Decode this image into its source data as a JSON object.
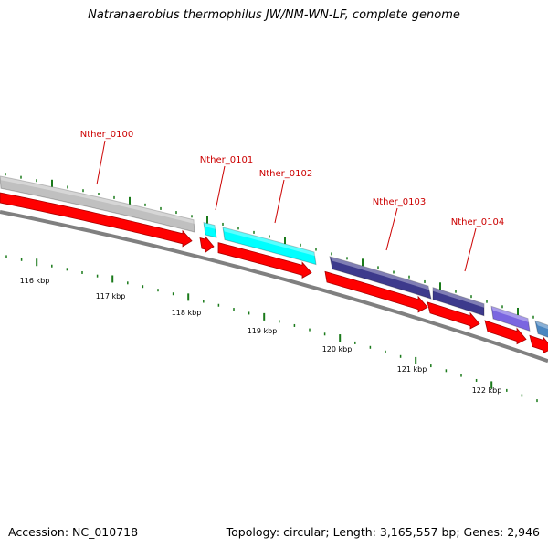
{
  "header": {
    "title": "Natranaerobius thermophilus JW/NM-WN-LF, complete genome"
  },
  "footer": {
    "accession": "Accession: NC_010718",
    "summary": "Topology: circular; Length: 3,165,557 bp; Genes: 2,946"
  },
  "colors": {
    "gene_label": "#cc0000",
    "tick_major": "#1a7a1a",
    "backbone": "#808080",
    "cds_arrow": "#ff0000"
  },
  "genes": [
    {
      "name": "Nther_0100",
      "color": "#c0c0c0"
    },
    {
      "name": "Nther_0101",
      "color": "#00ffff"
    },
    {
      "name": "Nther_0102",
      "color": "#00ffff"
    },
    {
      "name": "Nther_0103",
      "color": "#3d3a8c"
    },
    {
      "name": "Nther_0104",
      "color": "#3d3a8c"
    }
  ],
  "extra_feature_colors": [
    "#7a66e0",
    "#4a86c0"
  ],
  "scale_labels": [
    "116 kbp",
    "117 kbp",
    "118 kbp",
    "119 kbp",
    "120 kbp",
    "121 kbp",
    "122 kbp"
  ]
}
